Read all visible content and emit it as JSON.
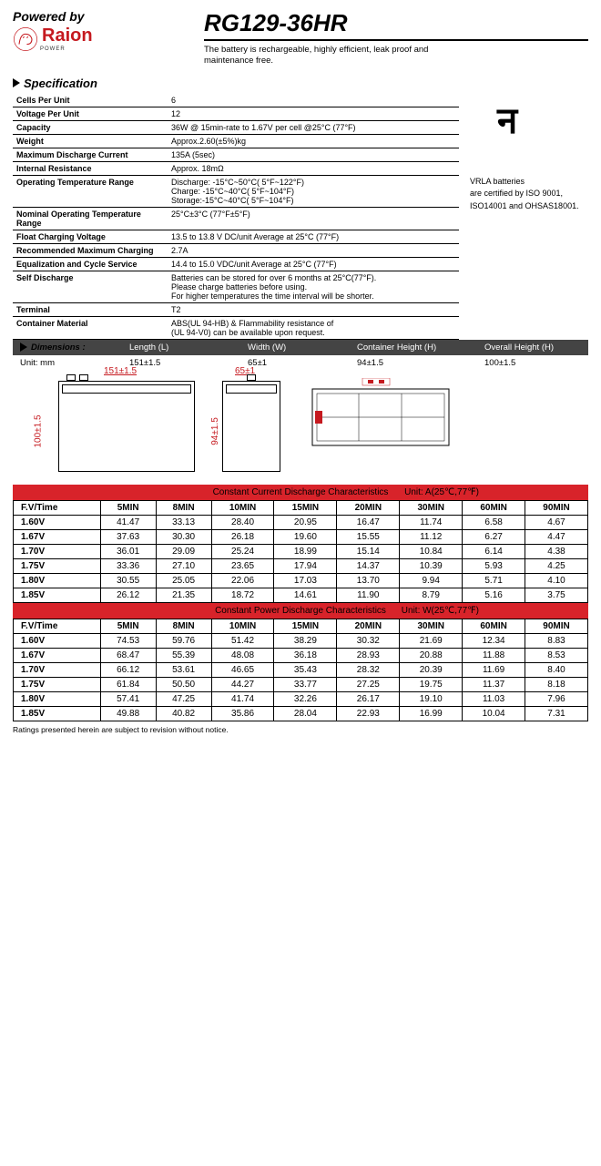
{
  "header": {
    "powered_by": "Powered by",
    "logo_brand": "Raion",
    "logo_sub": "POWER",
    "title": "RG129-36HR",
    "subtitle1": "The battery is rechargeable, highly efficient, leak proof and",
    "subtitle2": "maintenance free."
  },
  "spec": {
    "heading": "Specification",
    "rows": [
      {
        "k": "Cells Per Unit",
        "v": "6"
      },
      {
        "k": "Voltage Per Unit",
        "v": "12"
      },
      {
        "k": "Capacity",
        "v": "36W @ 15min-rate to 1.67V per cell @25°C (77°F)"
      },
      {
        "k": "Weight",
        "v": "Approx.2.60(±5%)kg"
      },
      {
        "k": "Maximum Discharge Current",
        "v": "135A (5sec)"
      },
      {
        "k": "Internal Resistance",
        "v": "Approx. 18mΩ"
      },
      {
        "k": "Operating Temperature Range",
        "v": "Discharge: -15°C~50°C( 5°F~122°F)\nCharge: -15°C~40°C( 5°F~104°F)\nStorage:-15°C~40°C( 5°F~104°F)"
      },
      {
        "k": "Nominal Operating Temperature Range",
        "v": "25°C±3°C (77°F±5°F)"
      },
      {
        "k": "Float Charging Voltage",
        "v": "13.5 to 13.8 V DC/unit Average at 25°C (77°F)"
      },
      {
        "k": "Recommended Maximum Charging",
        "v": "2.7A"
      },
      {
        "k": "Equalization and Cycle Service",
        "v": "14.4 to 15.0 VDC/unit Average at 25°C (77°F)"
      },
      {
        "k": "Self Discharge",
        "v": "Batteries can be stored for over 6 months at 25°C(77°F).\nPlease charge batteries before using.\nFor higher temperatures the time interval will be shorter."
      },
      {
        "k": "Terminal",
        "v": "T2"
      },
      {
        "k": "Container Material",
        "v": "ABS(UL 94-HB) & Flammability resistance of\n(UL 94-V0) can be available upon request."
      }
    ],
    "side": {
      "ul": "न",
      "l1": "VRLA batteries",
      "l2": "are certified by ISO 9001,",
      "l3": "ISO14001 and OHSAS18001."
    }
  },
  "dims": {
    "heading": "Dimensions :",
    "unit": "Unit: mm",
    "cols": [
      "Length (L)",
      "Width (W)",
      "Container Height (H)",
      "Overall Height (H)"
    ],
    "vals": [
      "151±1.5",
      "65±1",
      "94±1.5",
      "100±1.5"
    ],
    "labels": {
      "len": "151±1.5",
      "wid": "65±1",
      "ch": "94±1.5",
      "oh": "100±1.5"
    }
  },
  "tables": {
    "current": {
      "title": "Constant Current Discharge Characteristics",
      "unit": "Unit: A(25℃,77℉)",
      "cols": [
        "F.V/Time",
        "5MIN",
        "8MIN",
        "10MIN",
        "15MIN",
        "20MIN",
        "30MIN",
        "60MIN",
        "90MIN"
      ],
      "rows": [
        [
          "1.60V",
          "41.47",
          "33.13",
          "28.40",
          "20.95",
          "16.47",
          "11.74",
          "6.58",
          "4.67"
        ],
        [
          "1.67V",
          "37.63",
          "30.30",
          "26.18",
          "19.60",
          "15.55",
          "11.12",
          "6.27",
          "4.47"
        ],
        [
          "1.70V",
          "36.01",
          "29.09",
          "25.24",
          "18.99",
          "15.14",
          "10.84",
          "6.14",
          "4.38"
        ],
        [
          "1.75V",
          "33.36",
          "27.10",
          "23.65",
          "17.94",
          "14.37",
          "10.39",
          "5.93",
          "4.25"
        ],
        [
          "1.80V",
          "30.55",
          "25.05",
          "22.06",
          "17.03",
          "13.70",
          "9.94",
          "5.71",
          "4.10"
        ],
        [
          "1.85V",
          "26.12",
          "21.35",
          "18.72",
          "14.61",
          "11.90",
          "8.79",
          "5.16",
          "3.75"
        ]
      ]
    },
    "power": {
      "title": "Constant Power Discharge Characteristics",
      "unit": "Unit: W(25℃,77℉)",
      "cols": [
        "F.V/Time",
        "5MIN",
        "8MIN",
        "10MIN",
        "15MIN",
        "20MIN",
        "30MIN",
        "60MIN",
        "90MIN"
      ],
      "rows": [
        [
          "1.60V",
          "74.53",
          "59.76",
          "51.42",
          "38.29",
          "30.32",
          "21.69",
          "12.34",
          "8.83"
        ],
        [
          "1.67V",
          "68.47",
          "55.39",
          "48.08",
          "36.18",
          "28.93",
          "20.88",
          "11.88",
          "8.53"
        ],
        [
          "1.70V",
          "66.12",
          "53.61",
          "46.65",
          "35.43",
          "28.32",
          "20.39",
          "11.69",
          "8.40"
        ],
        [
          "1.75V",
          "61.84",
          "50.50",
          "44.27",
          "33.77",
          "27.25",
          "19.75",
          "11.37",
          "8.18"
        ],
        [
          "1.80V",
          "57.41",
          "47.25",
          "41.74",
          "32.26",
          "26.17",
          "19.10",
          "11.03",
          "7.96"
        ],
        [
          "1.85V",
          "49.88",
          "40.82",
          "35.86",
          "28.04",
          "22.93",
          "16.99",
          "10.04",
          "7.31"
        ]
      ]
    }
  },
  "footer": "Ratings presented herein are subject to revision without notice."
}
